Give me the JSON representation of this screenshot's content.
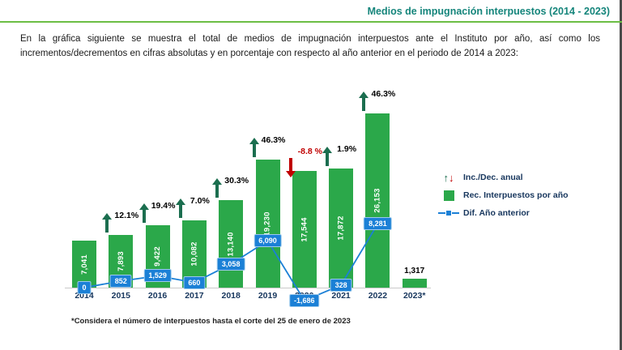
{
  "header": {
    "title": "Medios de impugnación interpuestos (2014 - 2023)"
  },
  "intro": "En la gráfica siguiente se muestra el total de medios de impugnación interpuestos ante el Instituto por año, así como los incrementos/decrementos en cifras absolutas y en porcentaje con respecto al año anterior en el periodo de 2014 a 2023:",
  "chart_data": {
    "type": "bar",
    "title": "Medios de impugnación interpuestos (2014 - 2023)",
    "categories": [
      "2014",
      "2015",
      "2016",
      "2017",
      "2018",
      "2019",
      "2020",
      "2021",
      "2022",
      "2023*"
    ],
    "series": [
      {
        "name": "Rec. Interpuestos por año",
        "values": [
          7041,
          7893,
          9422,
          10082,
          13140,
          19230,
          17544,
          17872,
          26153,
          1317
        ]
      },
      {
        "name": "Dif. Año anterior",
        "values": [
          0,
          852,
          1529,
          660,
          3058,
          6090,
          -1686,
          328,
          8281,
          null
        ]
      }
    ],
    "bar_labels": [
      "7,041",
      "7,893",
      "9,422",
      "10,082",
      "13,140",
      "19,230",
      "17,544",
      "17,872",
      "26,153",
      "1,317"
    ],
    "diff_labels": [
      "0",
      "852",
      "1,529",
      "660",
      "3,058",
      "6,090",
      "-1,686",
      "328",
      "8,281",
      null
    ],
    "pct_changes": [
      null,
      "12.1%",
      "19.4%",
      "7.0%",
      "30.3%",
      "46.3%",
      "-8.8 %",
      "1.9%",
      "46.3%",
      null
    ],
    "xlabel": "",
    "ylabel": "",
    "ylim": [
      0,
      27000
    ],
    "grid": false,
    "legend_position": "right",
    "legend": [
      {
        "label": "Inc./Dec. anual",
        "type": "arrows"
      },
      {
        "label": "Rec. Interpuestos por año",
        "type": "bar"
      },
      {
        "label": "Dif. Año anterior",
        "type": "line"
      }
    ],
    "colors": {
      "bar": "#2BA84A",
      "diff_line": "#1B80D6",
      "inc_arrow": "#1B6E4F",
      "dec_arrow": "#C00000",
      "title": "#15857B",
      "divider": "#6CBE45",
      "axis_text": "#17365D"
    }
  },
  "footnote": "*Considera el número de interpuestos hasta el corte del 25 de enero de 2023"
}
